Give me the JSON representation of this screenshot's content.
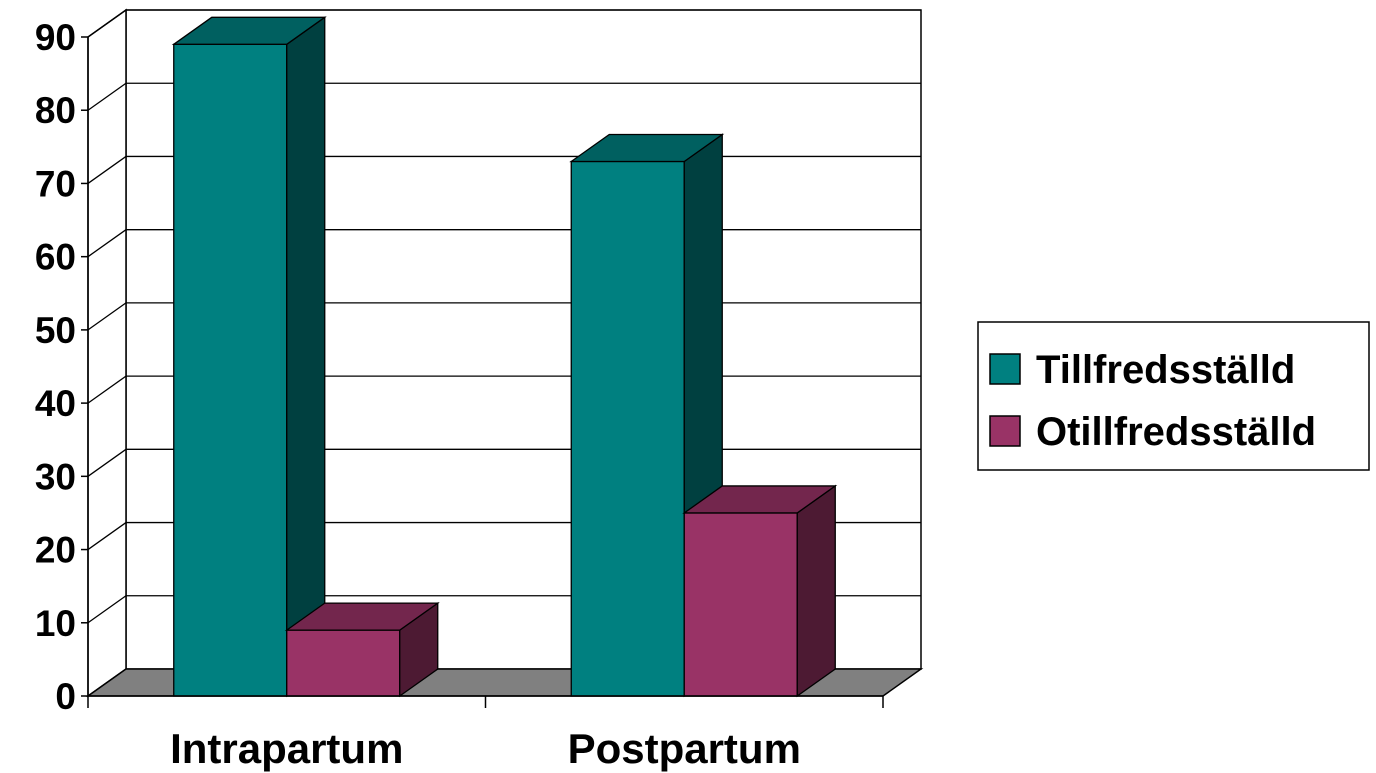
{
  "chart_data": {
    "type": "bar",
    "categories": [
      "Intrapartum",
      "Postpartum"
    ],
    "series": [
      {
        "name": "Tillfredsställd",
        "values": [
          89,
          73
        ],
        "color": "#008080"
      },
      {
        "name": "Otillfredsställd",
        "values": [
          9,
          25
        ],
        "color": "#993366"
      }
    ],
    "ylim": [
      0,
      90
    ],
    "yticks": [
      "0",
      "10",
      "20",
      "30",
      "40",
      "50",
      "60",
      "70",
      "80",
      "90"
    ],
    "grid": true,
    "three_d": true,
    "legend_position": "right",
    "title": "",
    "xlabel": "",
    "ylabel": ""
  }
}
